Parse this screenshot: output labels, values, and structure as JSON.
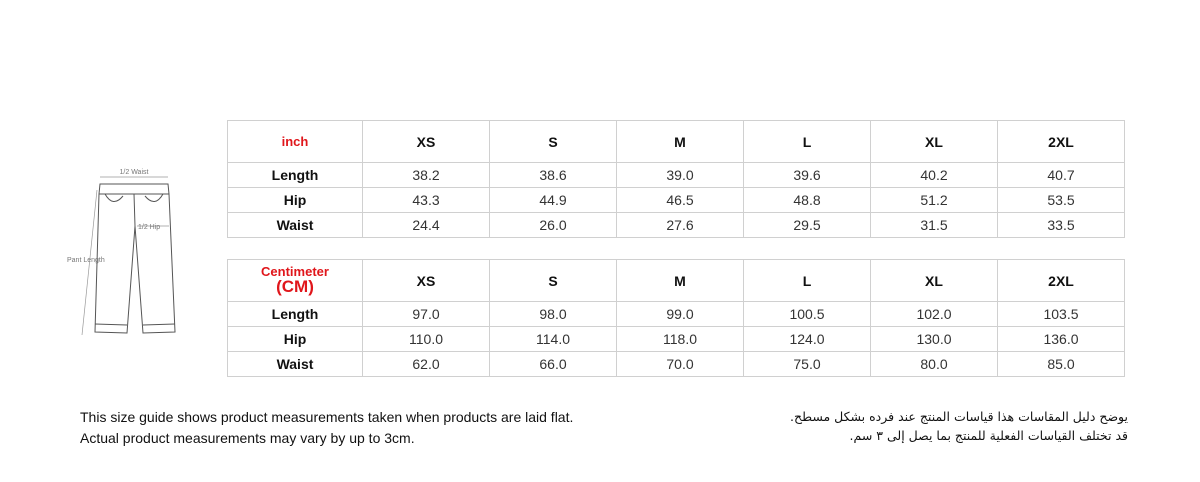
{
  "diagram": {
    "waist_label": "1/2 Waist",
    "hip_label": "1/2 Hip",
    "length_label": "Pant Length"
  },
  "tables": [
    {
      "unit": [
        "inch"
      ],
      "sizes": [
        "XS",
        "S",
        "M",
        "L",
        "XL",
        "2XL"
      ],
      "rows": [
        {
          "label": "Length",
          "values": [
            "38.2",
            "38.6",
            "39.0",
            "39.6",
            "40.2",
            "40.7"
          ]
        },
        {
          "label": "Hip",
          "values": [
            "43.3",
            "44.9",
            "46.5",
            "48.8",
            "51.2",
            "53.5"
          ]
        },
        {
          "label": "Waist",
          "values": [
            "24.4",
            "26.0",
            "27.6",
            "29.5",
            "31.5",
            "33.5"
          ]
        }
      ]
    },
    {
      "unit": [
        "Centimeter",
        "(CM)"
      ],
      "sizes": [
        "XS",
        "S",
        "M",
        "L",
        "XL",
        "2XL"
      ],
      "rows": [
        {
          "label": "Length",
          "values": [
            "97.0",
            "98.0",
            "99.0",
            "100.5",
            "102.0",
            "103.5"
          ]
        },
        {
          "label": "Hip",
          "values": [
            "110.0",
            "114.0",
            "118.0",
            "124.0",
            "130.0",
            "136.0"
          ]
        },
        {
          "label": "Waist",
          "values": [
            "62.0",
            "66.0",
            "70.0",
            "75.0",
            "80.0",
            "85.0"
          ]
        }
      ]
    }
  ],
  "notes": {
    "english": [
      "This size guide shows product measurements taken when products are laid flat.",
      "Actual product measurements may vary by up to 3cm."
    ],
    "arabic": [
      "يوضح دليل المقاسات هذا قياسات المنتج عند فرده بشكل مسطح.",
      "قد تختلف القياسات الفعلية للمنتج بما يصل إلى ٣ سم."
    ]
  }
}
